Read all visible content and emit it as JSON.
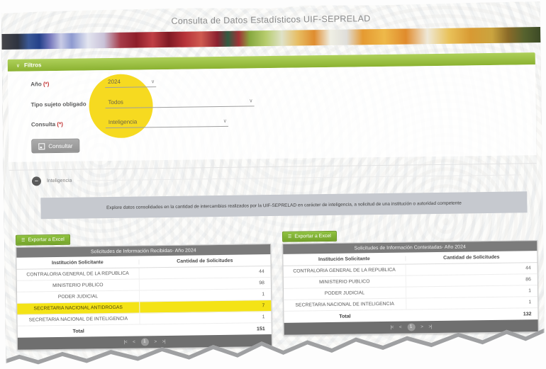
{
  "app": {
    "title": "Consulta de Datos Estadísticos UIF-SEPRELAD"
  },
  "icons": {
    "chevron_down": "∨",
    "collapse_minus": "−",
    "export_menu": "☰"
  },
  "filters": {
    "title": "Filtros",
    "fields": [
      {
        "label": "Año",
        "required": "(*)",
        "value": "2024"
      },
      {
        "label": "Tipo sujeto obligado",
        "required": "",
        "value": "Todos"
      },
      {
        "label": "Consulta",
        "required": "(*)",
        "value": "Inteligencia"
      }
    ],
    "submit_label": "Consultar"
  },
  "result_section": {
    "collapse_label": "Inteligencia",
    "description": "Explore datos consolidados en la cantidad de intercambios realizados por la UIF-SEPRELAD en carácter de inteligencia, a solicitud de una institución o autoridad competente"
  },
  "tables": [
    {
      "export_label": "Exportar a Excel",
      "title": "Solicitudes de Información Recibidas- Año 2024",
      "columns": [
        "Institución Solicitante",
        "Cantidad de Solicitudes"
      ],
      "rows": [
        {
          "institution": "CONTRALORIA GENERAL DE LA REPUBLICA",
          "value": "44",
          "highlight": false
        },
        {
          "institution": "MINISTERIO PÚBLICO",
          "value": "98",
          "highlight": false
        },
        {
          "institution": "PODER JUDICIAL",
          "value": "1",
          "highlight": false
        },
        {
          "institution": "SECRETARIA NACIONAL ANTIDROGAS",
          "value": "7",
          "highlight": true
        },
        {
          "institution": "SECRETARIA NACIONAL DE INTELIGENCIA",
          "value": "1",
          "highlight": false
        }
      ],
      "total_label": "Total",
      "total_value": "151",
      "pagination": [
        "|<",
        "<",
        "1",
        ">",
        ">|"
      ]
    },
    {
      "export_label": "Exportar a Excel",
      "title": "Solicitudes de Información Contestadas- Año 2024",
      "columns": [
        "Institución Solicitante",
        "Cantidad de Solicitudes"
      ],
      "rows": [
        {
          "institution": "CONTRALORIA GENERAL DE LA REPUBLICA",
          "value": "44",
          "highlight": false
        },
        {
          "institution": "MINISTERIO PÚBLICO",
          "value": "86",
          "highlight": false
        },
        {
          "institution": "PODER JUDICIAL",
          "value": "1",
          "highlight": false
        },
        {
          "institution": "SECRETARIA NACIONAL DE INTELIGENCIA",
          "value": "1",
          "highlight": false
        }
      ],
      "total_label": "Total",
      "total_value": "132",
      "pagination": [
        "|<",
        "<",
        "1",
        ">",
        ">|"
      ]
    }
  ],
  "colors": {
    "accent_green": "#8bb231",
    "table_header_gray": "#7b7b7b",
    "row_highlight_yellow": "#f4e316",
    "annotation_yellow": "#f5d70d",
    "required_red": "#c23030"
  }
}
